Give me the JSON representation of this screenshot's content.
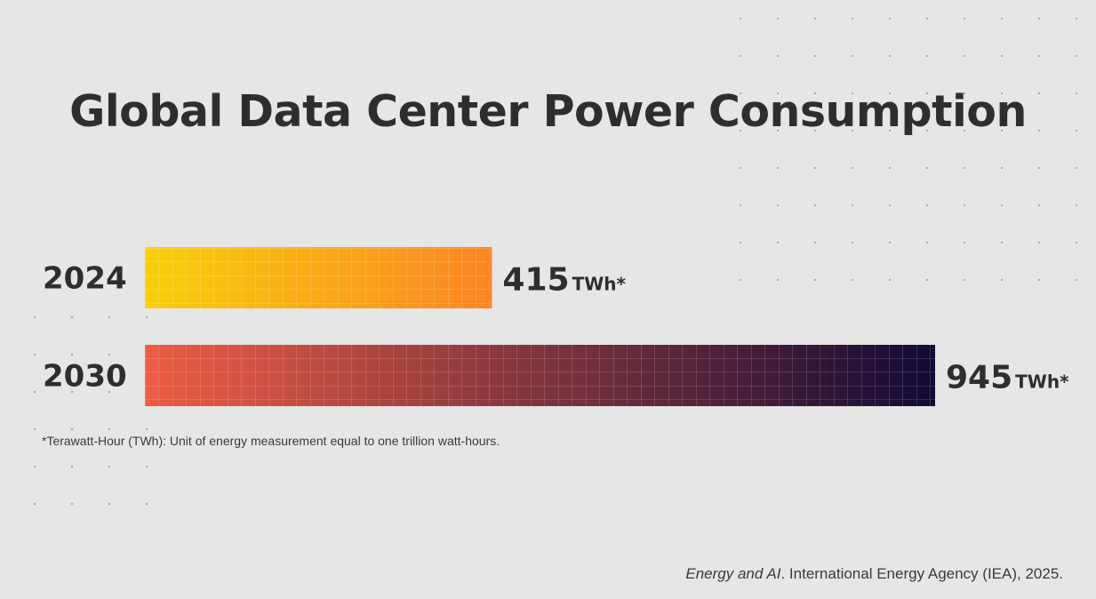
{
  "chart_data": {
    "type": "bar",
    "orientation": "horizontal",
    "title": "Global Data Center Power Consumption",
    "categories": [
      "2024",
      "2030"
    ],
    "values": [
      415,
      945
    ],
    "unit": "TWh*",
    "xlim": [
      0,
      945
    ],
    "grid": false,
    "legend": "none",
    "bar_gradients": [
      [
        "#f7cf0c",
        "#fb8523"
      ],
      [
        "#ee5d43",
        "#110a35"
      ]
    ]
  },
  "footnote": "*Terawatt-Hour (TWh): Unit of energy measurement equal to one trillion watt-hours.",
  "source": {
    "italic_part": "Energy and AI",
    "rest": ". International Energy Agency (IEA), 2025."
  },
  "colors": {
    "background": "#e6e6e6",
    "text": "#2e2e2e"
  }
}
